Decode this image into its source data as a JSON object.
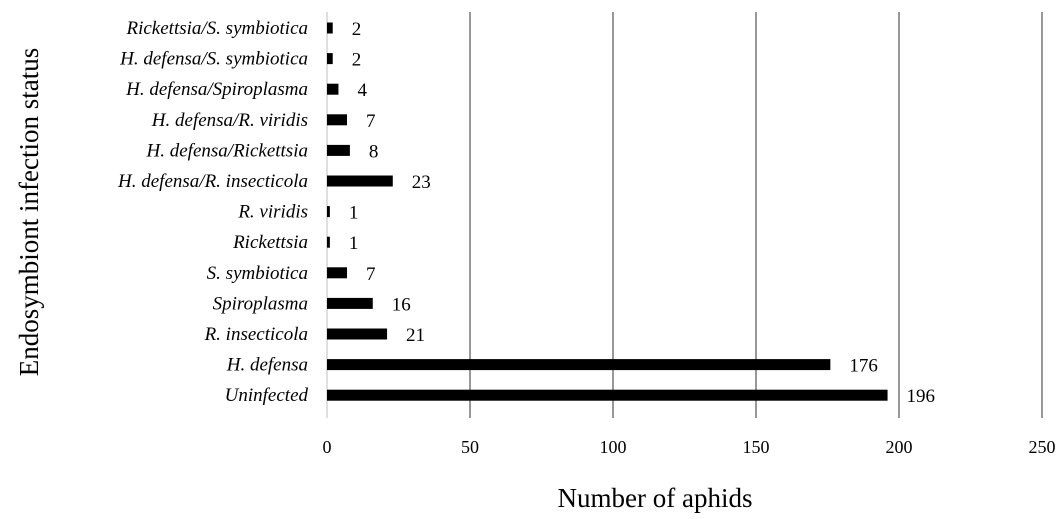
{
  "chart_data": {
    "type": "bar",
    "orientation": "horizontal",
    "title": "",
    "xlabel": "Number of aphids",
    "ylabel": "Endosymbiont infection status",
    "xlim": [
      0,
      250
    ],
    "xticks": [
      0,
      50,
      100,
      150,
      200,
      250
    ],
    "grid": "vertical",
    "legend": "none",
    "bar_color": "#000000",
    "grid_color": "#7f7f7f",
    "categories": [
      "Rickettsia/S. symbiotica",
      "H. defensa/S. symbiotica",
      "H. defensa/Spiroplasma",
      "H. defensa/R. viridis",
      "H. defensa/Rickettsia",
      "H. defensa/R. insecticola",
      "R. viridis",
      "Rickettsia",
      "S. symbiotica",
      "Spiroplasma",
      "R. insecticola",
      "H. defensa",
      "Uninfected"
    ],
    "values": [
      2,
      2,
      4,
      7,
      8,
      23,
      1,
      1,
      7,
      16,
      21,
      176,
      196
    ]
  }
}
